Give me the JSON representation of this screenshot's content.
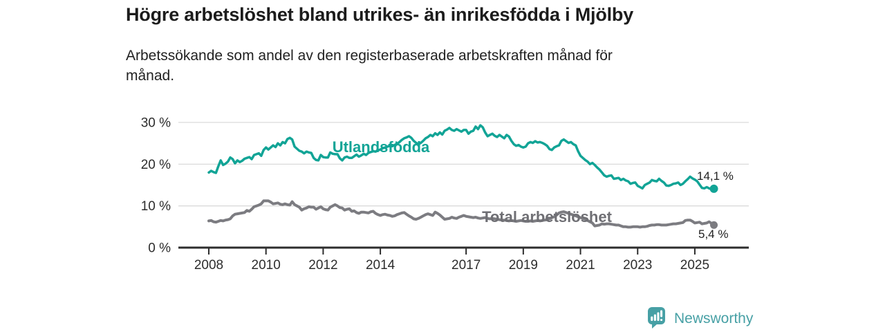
{
  "header": {
    "title": "Högre arbetslöshet bland utrikes- än inrikesfödda i Mjölby",
    "subtitle_lines": [
      "Arbetssökande som andel av den registerbaserade arbetskraften månad för",
      "månad."
    ]
  },
  "chart_data": {
    "type": "line",
    "title": "Högre arbetslöshet bland utrikes- än inrikesfödda i Mjölby",
    "subtitle": "Arbetssökande som andel av den registerbaserade arbetskraften månad för månad.",
    "unit": "%",
    "x_monthly_start": "2008-01",
    "x_monthly_end": "2025-09",
    "x_tick_labels": [
      "2008",
      "2010",
      "2012",
      "2014",
      "2017",
      "2019",
      "2021",
      "2023",
      "2025"
    ],
    "x_tick_years": [
      2008,
      2010,
      2012,
      2014,
      2017,
      2019,
      2021,
      2023,
      2025
    ],
    "y_tick_labels": [
      "30 %",
      "20 %",
      "10 %",
      "0 %"
    ],
    "y_tick_values": [
      30,
      20,
      10,
      0
    ],
    "ylim": [
      0,
      33
    ],
    "grid": true,
    "grid_color": "#dadada",
    "axis_color": "#2d2d2d",
    "series": [
      {
        "name": "Utlandsfödda",
        "color": "#12a496",
        "end_label": "14,1 %",
        "end_value": 14.1,
        "values": [
          18.0,
          18.4,
          18.1,
          17.9,
          19.5,
          20.9,
          19.8,
          20.1,
          20.6,
          21.6,
          21.2,
          20.2,
          20.9,
          20.5,
          20.8,
          21.3,
          21.5,
          21.7,
          21.2,
          22.2,
          22.4,
          22.6,
          22.0,
          23.4,
          24.0,
          23.5,
          24.0,
          24.5,
          24.1,
          25.0,
          24.5,
          25.3,
          25.0,
          26.0,
          26.3,
          25.9,
          24.2,
          23.7,
          23.2,
          23.0,
          22.6,
          23.0,
          22.8,
          22.7,
          21.5,
          21.0,
          20.9,
          22.2,
          21.7,
          21.6,
          21.6,
          22.8,
          22.5,
          22.4,
          22.4,
          21.4,
          20.9,
          21.6,
          21.8,
          21.5,
          21.5,
          21.9,
          22.3,
          21.8,
          22.1,
          22.5,
          22.2,
          22.7,
          22.9,
          23.1,
          23.0,
          23.3,
          23.5,
          23.8,
          24.0,
          24.2,
          24.4,
          24.3,
          24.6,
          24.9,
          25.3,
          25.8,
          26.2,
          26.4,
          26.7,
          26.3,
          25.6,
          25.1,
          24.8,
          25.1,
          25.6,
          26.2,
          26.5,
          27.0,
          26.7,
          27.4,
          27.0,
          27.6,
          27.1,
          28.0,
          28.3,
          28.7,
          28.2,
          28.0,
          28.4,
          28.1,
          27.8,
          28.2,
          28.2,
          27.3,
          27.8,
          28.0,
          29.0,
          28.4,
          29.3,
          28.8,
          27.6,
          26.7,
          27.0,
          27.3,
          26.8,
          26.5,
          27.0,
          26.6,
          26.2,
          27.0,
          26.6,
          25.6,
          24.8,
          24.4,
          24.6,
          24.2,
          24.0,
          24.2,
          25.0,
          25.3,
          25.1,
          25.5,
          25.2,
          25.3,
          25.1,
          24.8,
          24.4,
          23.6,
          23.4,
          24.0,
          24.3,
          24.5,
          25.6,
          25.9,
          25.5,
          25.1,
          25.3,
          24.8,
          24.5,
          23.1,
          22.0,
          21.5,
          21.0,
          20.6,
          20.0,
          20.3,
          19.8,
          19.2,
          18.7,
          18.0,
          17.3,
          17.0,
          17.2,
          17.3,
          16.5,
          16.6,
          16.7,
          16.2,
          16.5,
          16.1,
          15.9,
          15.3,
          15.5,
          15.6,
          14.8,
          14.5,
          14.2,
          15.0,
          15.3,
          15.6,
          16.2,
          16.0,
          15.9,
          16.5,
          16.0,
          15.6,
          14.9,
          14.8,
          15.0,
          15.3,
          15.4,
          15.6,
          15.0,
          15.3,
          15.9,
          16.4,
          17.0,
          16.6,
          16.3,
          15.9,
          15.1,
          14.3,
          14.2,
          14.5,
          14.2,
          14.0,
          14.1
        ]
      },
      {
        "name": "Total arbetslöshet",
        "color": "#7c7c81",
        "label_color": "#6f6f74",
        "end_label": "5,4 %",
        "end_value": 5.4,
        "values": [
          6.4,
          6.5,
          6.2,
          6.1,
          6.3,
          6.5,
          6.4,
          6.6,
          6.7,
          6.9,
          7.6,
          8.0,
          8.1,
          8.2,
          8.3,
          8.4,
          8.9,
          8.7,
          9.2,
          9.8,
          10.0,
          10.2,
          10.5,
          11.2,
          11.2,
          11.2,
          10.9,
          10.5,
          10.6,
          10.7,
          10.4,
          10.3,
          10.5,
          10.3,
          10.2,
          11.0,
          10.3,
          10.0,
          9.7,
          9.0,
          9.3,
          9.5,
          9.8,
          9.7,
          9.7,
          9.2,
          9.5,
          9.8,
          9.3,
          9.1,
          9.0,
          9.7,
          10.0,
          10.3,
          10.0,
          9.6,
          9.5,
          9.0,
          9.2,
          9.3,
          8.7,
          8.8,
          8.4,
          8.2,
          8.5,
          8.5,
          8.4,
          8.3,
          8.6,
          8.7,
          8.2,
          7.9,
          7.7,
          7.9,
          8.0,
          7.8,
          7.7,
          7.5,
          7.6,
          7.9,
          8.1,
          8.3,
          8.4,
          8.0,
          7.6,
          7.3,
          6.9,
          6.8,
          7.0,
          7.3,
          7.6,
          7.9,
          8.1,
          7.9,
          7.7,
          8.5,
          8.2,
          7.8,
          7.3,
          6.8,
          6.9,
          7.0,
          7.3,
          7.1,
          7.0,
          7.3,
          7.5,
          7.7,
          7.5,
          7.4,
          7.3,
          7.2,
          7.3,
          7.1,
          7.0,
          7.1,
          7.2,
          7.0,
          6.9,
          7.0,
          6.9,
          6.8,
          6.7,
          6.6,
          6.6,
          6.5,
          6.4,
          6.5,
          6.4,
          6.3,
          6.4,
          6.5,
          6.4,
          6.3,
          6.3,
          6.4,
          6.3,
          6.4,
          6.5,
          6.4,
          6.5,
          6.6,
          6.7,
          6.9,
          7.2,
          7.4,
          7.8,
          8.3,
          8.5,
          8.6,
          8.4,
          8.2,
          8.0,
          7.8,
          7.6,
          7.4,
          7.2,
          7.0,
          6.8,
          6.5,
          6.2,
          5.9,
          5.2,
          5.3,
          5.4,
          5.7,
          5.6,
          5.7,
          5.7,
          5.6,
          5.5,
          5.4,
          5.4,
          5.2,
          5.0,
          5.0,
          4.9,
          4.9,
          5.0,
          5.0,
          5.0,
          4.9,
          5.0,
          5.0,
          5.1,
          5.3,
          5.4,
          5.4,
          5.5,
          5.5,
          5.4,
          5.4,
          5.4,
          5.5,
          5.6,
          5.7,
          5.7,
          5.8,
          5.9,
          6.0,
          6.5,
          6.6,
          6.6,
          6.3,
          5.9,
          6.0,
          6.1,
          5.7,
          5.8,
          5.9,
          6.2,
          5.8,
          5.4
        ]
      }
    ]
  },
  "footer": {
    "brand": "Newsworthy",
    "logo_color": "#47a0a5"
  }
}
